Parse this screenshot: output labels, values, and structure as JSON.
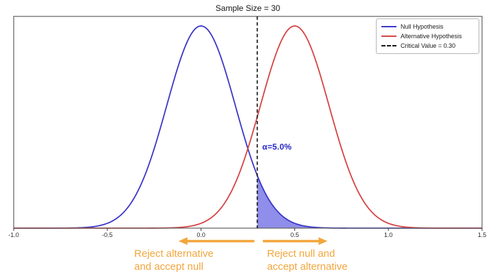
{
  "chart_data": {
    "type": "line",
    "title": "Sample Size = 30",
    "xlabel": "",
    "ylabel": "",
    "x_range": [
      -1.0,
      1.5
    ],
    "x_ticks": [
      "-1.0",
      "-0.5",
      "0.0",
      "0.5",
      "1.0",
      "1.5"
    ],
    "grid": false,
    "legend_position": "upper right",
    "series": [
      {
        "name": "Null Hypothesis",
        "shape": "normal_pdf",
        "mean": 0.0,
        "sd": 0.183,
        "color": "#3a36c8",
        "style": "solid"
      },
      {
        "name": "Alternative Hypothesis",
        "shape": "normal_pdf",
        "mean": 0.5,
        "sd": 0.183,
        "color": "#d64242",
        "style": "solid"
      }
    ],
    "critical_value": {
      "x": 0.3,
      "color": "#161616",
      "style": "dashed"
    },
    "shaded_region": {
      "series_index": 0,
      "x_from": 0.3,
      "x_to": 1.5,
      "fill": "#4b48dd",
      "opacity": 0.62
    },
    "alpha_annotation": {
      "text": "α=5.0%",
      "color": "#2525c6",
      "x": 0.33
    }
  },
  "legend": {
    "entries": [
      {
        "label": "Null Hypothesis",
        "color": "#3a36c8",
        "dash": false
      },
      {
        "label": "Alternative Hypothesis",
        "color": "#d64242",
        "dash": false
      },
      {
        "label": "Critical Value = 0.30",
        "color": "#161616",
        "dash": true
      }
    ]
  },
  "annotations": {
    "color": "#f2a53c",
    "left": {
      "line1": "Reject alternative",
      "line2": "and accept null",
      "arrow_direction": "left",
      "arrow": {
        "x_from": 0.285,
        "x_to": -0.12
      }
    },
    "right": {
      "line1": "Reject null and",
      "line2": "accept alternative",
      "arrow_direction": "right",
      "arrow": {
        "x_from": 0.33,
        "x_to": 0.675
      }
    }
  }
}
